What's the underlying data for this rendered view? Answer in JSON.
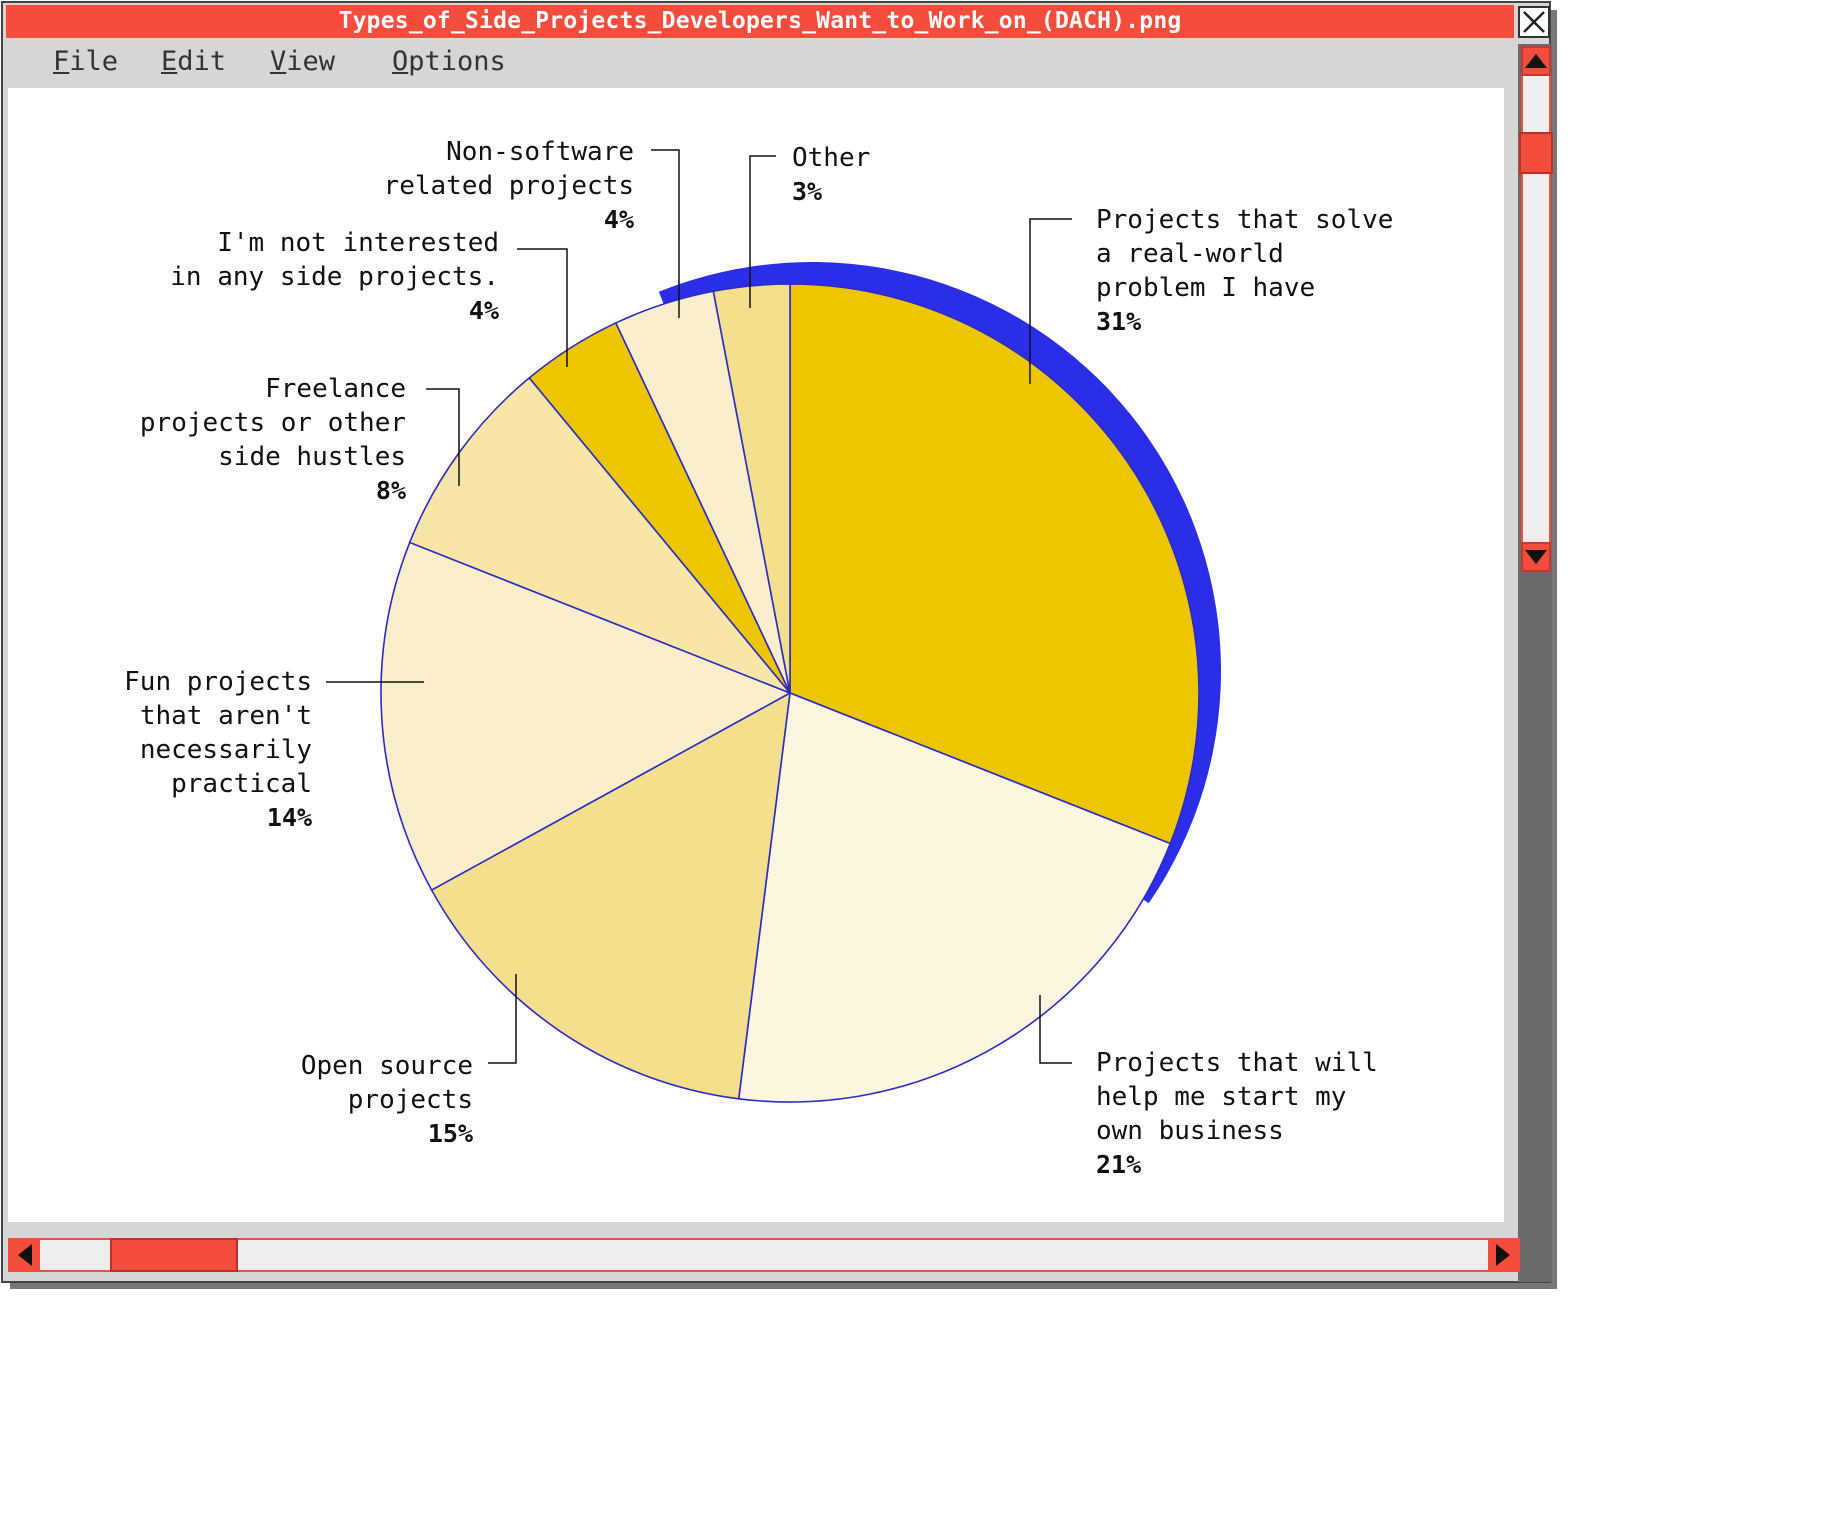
{
  "window": {
    "title": "Types_of_Side_Projects_Developers_Want_to_Work_on_(DACH).png",
    "close_glyph": "✕"
  },
  "menu": [
    {
      "mnemonic": "F",
      "rest": "ile"
    },
    {
      "mnemonic": "E",
      "rest": "dit"
    },
    {
      "mnemonic": "V",
      "rest": "iew"
    },
    {
      "mnemonic": "O",
      "rest": "ptions"
    }
  ],
  "colors": {
    "titlebar": "#f54d3c",
    "accent_ring": "#2b2ee6",
    "slice_stroke": "#2b2bbf"
  },
  "icons": {
    "close": "close-icon",
    "scroll_up": "arrow-up-icon",
    "scroll_down": "arrow-down-icon",
    "scroll_left": "arrow-left-icon",
    "scroll_right": "arrow-right-icon"
  },
  "chart_data": {
    "type": "pie",
    "unit": "%",
    "slices": [
      {
        "label": "Projects that solve a real-world problem I have",
        "lines": [
          "Projects that solve",
          "a real-world",
          "problem I have"
        ],
        "value": 31,
        "display": "31%",
        "color": "#edc600"
      },
      {
        "label": "Projects that will help me start my own business",
        "lines": [
          "Projects that will",
          "help me start my",
          "own business"
        ],
        "value": 21,
        "display": "21%",
        "color": "#fcf5e0"
      },
      {
        "label": "Open source projects",
        "lines": [
          "Open source",
          "projects"
        ],
        "value": 15,
        "display": "15%",
        "color": "#f4df8e"
      },
      {
        "label": "Fun projects that aren't necessarily practical",
        "lines": [
          "Fun projects",
          "that aren't",
          "necessarily",
          "practical"
        ],
        "value": 14,
        "display": "14%",
        "color": "#f9eecb"
      },
      {
        "label": "Freelance projects or other side hustles",
        "lines": [
          "Freelance",
          "projects or other",
          "side hustles"
        ],
        "value": 8,
        "display": "8%",
        "color": "#f8e6a8"
      },
      {
        "label": "I'm not interested in any side projects.",
        "lines": [
          "I'm not interested",
          "in any side projects."
        ],
        "value": 4,
        "display": "4%",
        "color": "#edc600"
      },
      {
        "label": "Non-software related projects",
        "lines": [
          "Non-software",
          "related projects"
        ],
        "value": 4,
        "display": "4%",
        "color": "#f9eecb"
      },
      {
        "label": "Other",
        "lines": [
          "Other"
        ],
        "value": 3,
        "display": "3%",
        "color": "#f4df8e"
      }
    ]
  }
}
